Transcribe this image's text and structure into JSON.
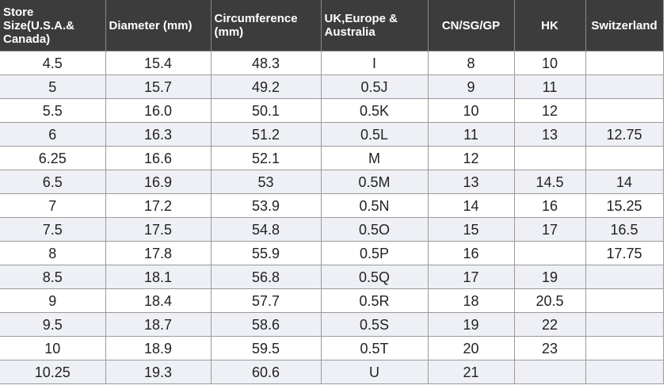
{
  "table": {
    "columns": [
      "Store Size(U.S.A.& Canada)",
      "Diameter (mm)",
      "Circumference (mm)",
      "UK,Europe & Australia",
      "CN/SG/GP",
      "HK",
      "Switzerland"
    ],
    "rows": [
      [
        "4.5",
        "15.4",
        "48.3",
        "I",
        "8",
        "10",
        ""
      ],
      [
        "5",
        "15.7",
        "49.2",
        "0.5J",
        "9",
        "11",
        ""
      ],
      [
        "5.5",
        "16.0",
        "50.1",
        "0.5K",
        "10",
        "12",
        ""
      ],
      [
        "6",
        "16.3",
        "51.2",
        "0.5L",
        "11",
        "13",
        "12.75"
      ],
      [
        "6.25",
        "16.6",
        "52.1",
        "M",
        "12",
        "",
        ""
      ],
      [
        "6.5",
        "16.9",
        "53",
        "0.5M",
        "13",
        "14.5",
        "14"
      ],
      [
        "7",
        "17.2",
        "53.9",
        "0.5N",
        "14",
        "16",
        "15.25"
      ],
      [
        "7.5",
        "17.5",
        "54.8",
        "0.5O",
        "15",
        "17",
        "16.5"
      ],
      [
        "8",
        "17.8",
        "55.9",
        "0.5P",
        "16",
        "",
        "17.75"
      ],
      [
        "8.5",
        "18.1",
        "56.8",
        "0.5Q",
        "17",
        "19",
        ""
      ],
      [
        "9",
        "18.4",
        "57.7",
        "0.5R",
        "18",
        "20.5",
        ""
      ],
      [
        "9.5",
        "18.7",
        "58.6",
        "0.5S",
        "19",
        "22",
        ""
      ],
      [
        "10",
        "18.9",
        "59.5",
        "0.5T",
        "20",
        "23",
        ""
      ],
      [
        "10.25",
        "19.3",
        "60.6",
        "U",
        "21",
        "",
        ""
      ]
    ]
  },
  "colors": {
    "header_bg": "#3c3c3c",
    "header_text": "#ffffff",
    "stripe": "#eef0f6",
    "grid": "#9a9a9a"
  }
}
